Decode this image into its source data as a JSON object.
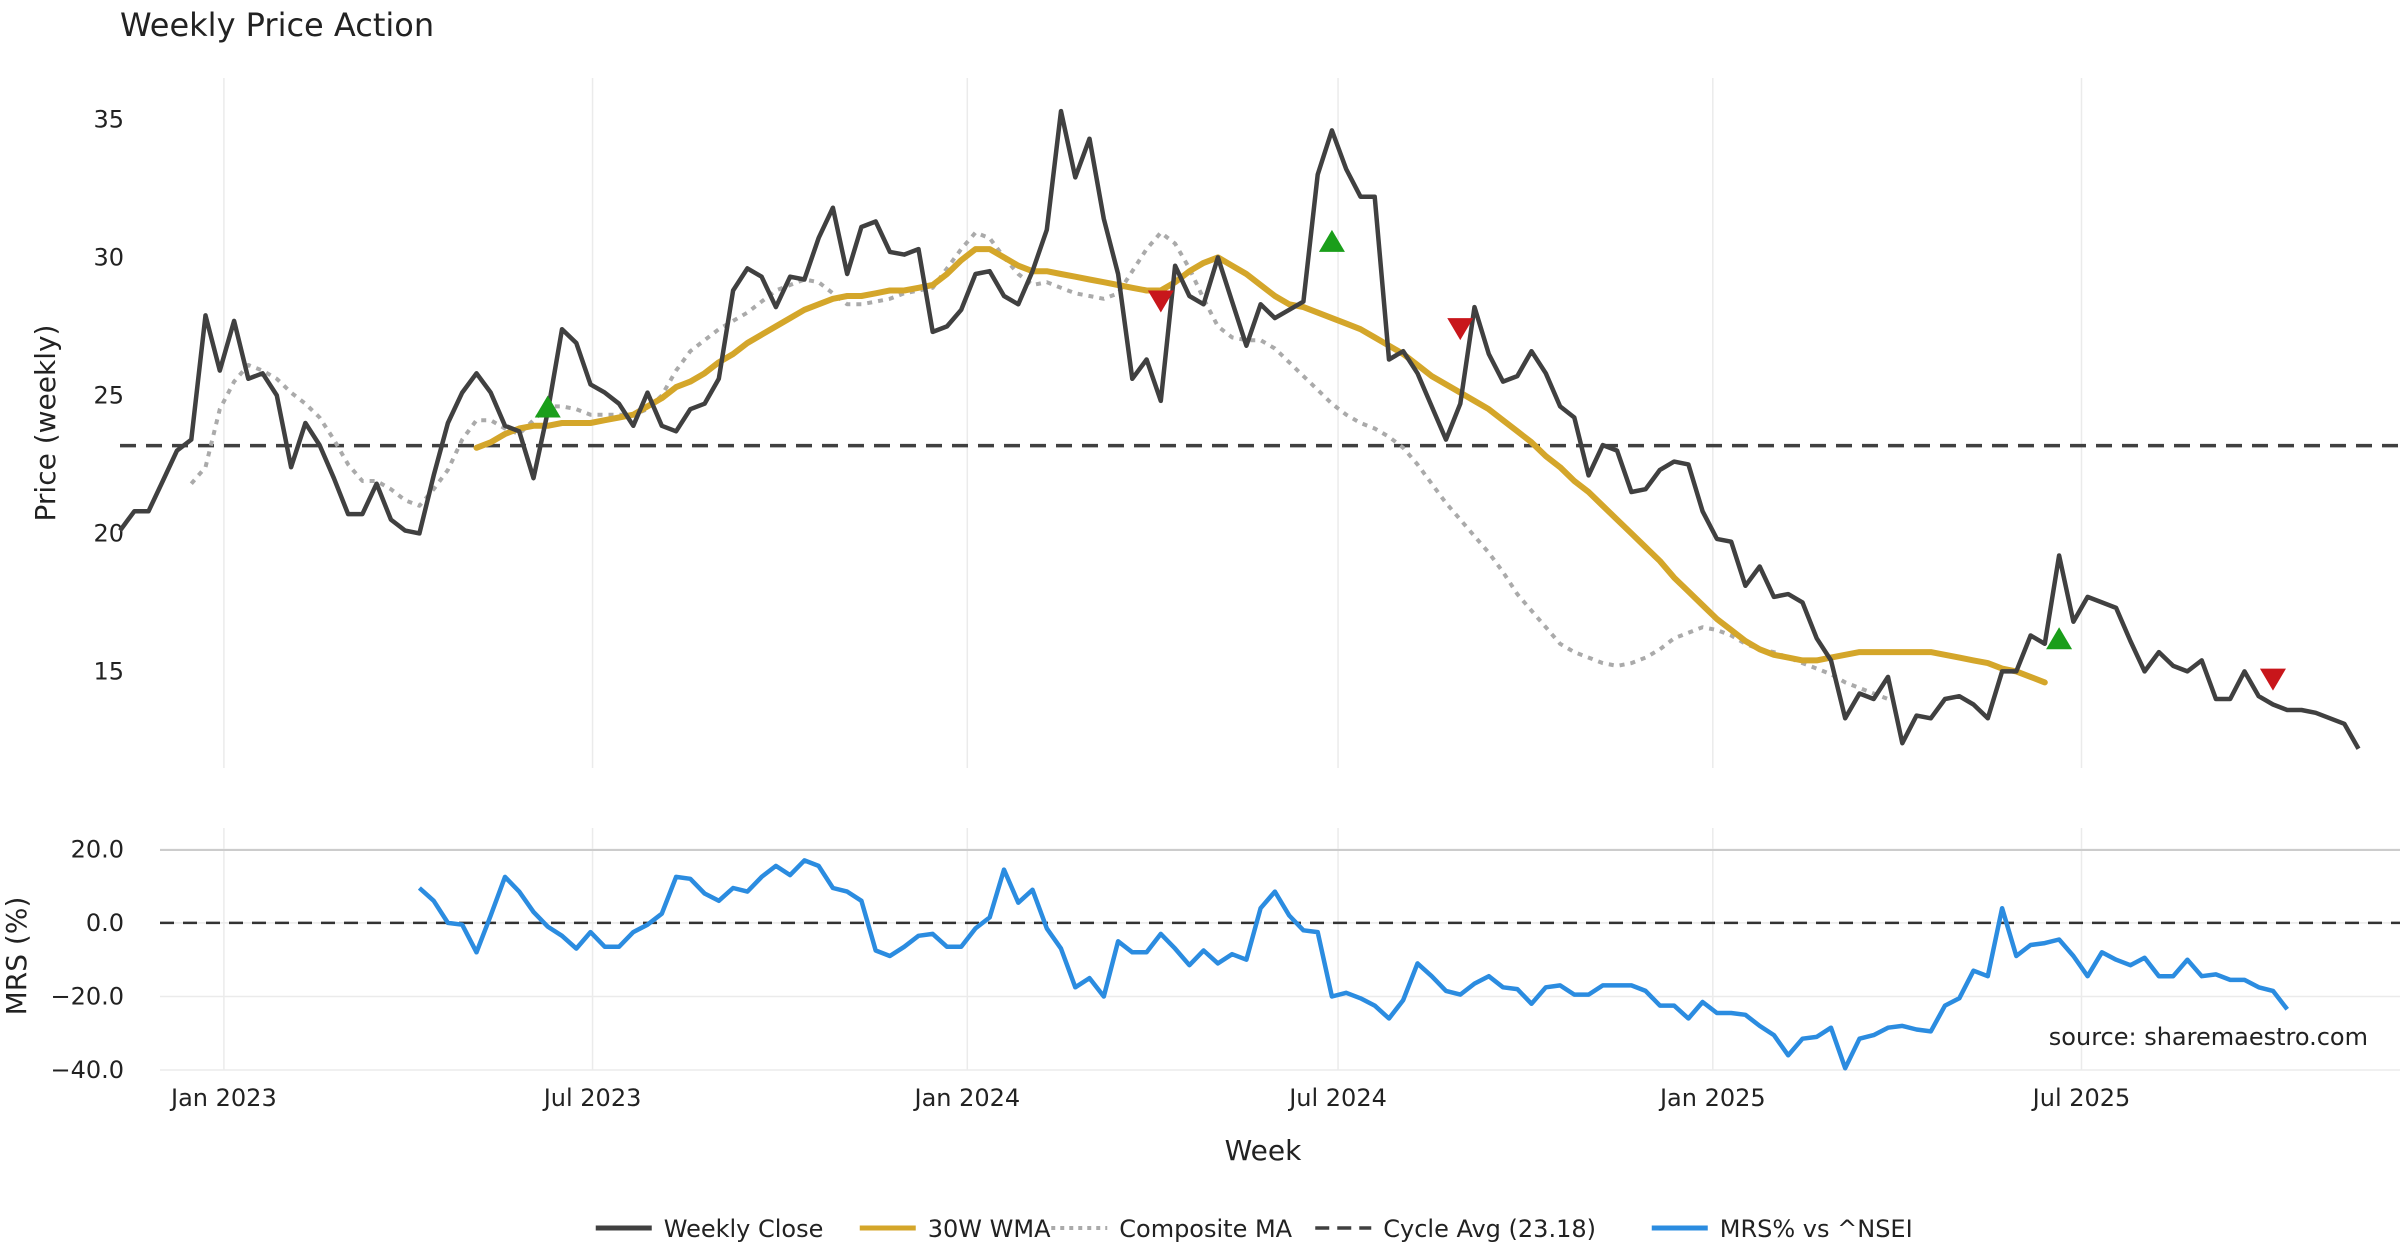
{
  "chart_data": [
    {
      "type": "line",
      "title": "Weekly Price Action",
      "xlabel": "",
      "ylabel": "Price (weekly)",
      "ylim": [
        11.5,
        36.5
      ],
      "yticks": [
        15,
        20,
        25,
        30,
        35
      ],
      "x_time_range": [
        "2022-11-11",
        "2025-10-31"
      ],
      "grid": true,
      "cycle_avg": 23.18,
      "series": [
        {
          "name": "Weekly Close",
          "color": "#404040",
          "start": "2022-11-11",
          "values": [
            20.1,
            20.8,
            20.8,
            21.9,
            23.0,
            23.4,
            27.9,
            25.9,
            27.7,
            25.6,
            25.8,
            25.0,
            22.4,
            24.0,
            23.2,
            22.0,
            20.7,
            20.7,
            21.8,
            20.5,
            20.1,
            20.0,
            22.1,
            24.0,
            25.1,
            25.8,
            25.1,
            23.9,
            23.7,
            22.0,
            24.4,
            27.4,
            26.9,
            25.4,
            25.1,
            24.7,
            23.9,
            25.1,
            23.9,
            23.7,
            24.5,
            24.7,
            25.6,
            28.8,
            29.6,
            29.3,
            28.2,
            29.3,
            29.2,
            30.7,
            31.8,
            29.4,
            31.1,
            31.3,
            30.2,
            30.1,
            30.3,
            27.3,
            27.5,
            28.1,
            29.4,
            29.5,
            28.6,
            28.3,
            29.5,
            31.0,
            35.3,
            32.9,
            34.3,
            31.4,
            29.4,
            25.6,
            26.3,
            24.8,
            29.7,
            28.6,
            28.3,
            30.0,
            28.4,
            26.8,
            28.3,
            27.8,
            28.1,
            28.4,
            33.0,
            34.6,
            33.2,
            32.2,
            32.2,
            26.3,
            26.6,
            25.8,
            24.6,
            23.4,
            24.7,
            28.2,
            26.5,
            25.5,
            25.7,
            26.6,
            25.8,
            24.6,
            24.2,
            22.1,
            23.2,
            23.0,
            21.5,
            21.6,
            22.3,
            22.6,
            22.5,
            20.8,
            19.8,
            19.7,
            18.1,
            18.8,
            17.7,
            17.8,
            17.5,
            16.2,
            15.4,
            13.3,
            14.2,
            14.0,
            14.8,
            12.4,
            13.4,
            13.3,
            14.0,
            14.1,
            13.8,
            13.3,
            15.0,
            15.0,
            16.3,
            16.0,
            19.2,
            16.8,
            17.7,
            17.5,
            17.3,
            16.1,
            15.0,
            15.7,
            15.2,
            15.0,
            15.4,
            14.0,
            14.0,
            15.0,
            14.1,
            13.8,
            13.6,
            13.6,
            13.5,
            13.3,
            13.1,
            12.2
          ]
        },
        {
          "name": "30W WMA",
          "color": "#D4A62A",
          "start": "2023-05-05",
          "values": [
            23.1,
            23.3,
            23.6,
            23.8,
            23.9,
            23.9,
            24.0,
            24.0,
            24.0,
            24.1,
            24.2,
            24.3,
            24.6,
            24.9,
            25.3,
            25.5,
            25.8,
            26.2,
            26.5,
            26.9,
            27.2,
            27.5,
            27.8,
            28.1,
            28.3,
            28.5,
            28.6,
            28.6,
            28.7,
            28.8,
            28.8,
            28.9,
            29.0,
            29.4,
            29.9,
            30.3,
            30.3,
            30.0,
            29.7,
            29.5,
            29.5,
            29.4,
            29.3,
            29.2,
            29.1,
            29.0,
            28.9,
            28.8,
            28.8,
            29.1,
            29.5,
            29.8,
            30.0,
            29.7,
            29.4,
            29.0,
            28.6,
            28.3,
            28.2,
            28.0,
            27.8,
            27.6,
            27.4,
            27.1,
            26.8,
            26.5,
            26.1,
            25.7,
            25.4,
            25.1,
            24.8,
            24.5,
            24.1,
            23.7,
            23.3,
            22.8,
            22.4,
            21.9,
            21.5,
            21.0,
            20.5,
            20.0,
            19.5,
            19.0,
            18.4,
            17.9,
            17.4,
            16.9,
            16.5,
            16.1,
            15.8,
            15.6,
            15.5,
            15.4,
            15.4,
            15.5,
            15.6,
            15.7,
            15.7,
            15.7,
            15.7,
            15.7,
            15.7,
            15.6,
            15.5,
            15.4,
            15.3,
            15.1,
            15.0,
            14.8,
            14.6
          ]
        },
        {
          "name": "Composite MA",
          "color": "#AAAAAA",
          "start": "2022-12-16",
          "values": [
            21.8,
            22.4,
            24.5,
            25.5,
            26.1,
            25.9,
            25.6,
            25.1,
            24.7,
            24.2,
            23.4,
            22.5,
            21.9,
            21.9,
            21.6,
            21.2,
            21.0,
            21.6,
            22.3,
            23.4,
            24.1,
            24.1,
            23.8,
            23.6,
            24.1,
            24.6,
            24.6,
            24.5,
            24.3,
            24.3,
            24.3,
            24.3,
            24.5,
            25.0,
            25.9,
            26.6,
            27.0,
            27.4,
            27.7,
            28.0,
            28.4,
            28.8,
            29.0,
            29.2,
            29.1,
            28.7,
            28.3,
            28.3,
            28.4,
            28.5,
            28.7,
            28.8,
            28.9,
            29.6,
            30.3,
            30.9,
            30.7,
            30.0,
            29.4,
            29.0,
            29.1,
            28.9,
            28.7,
            28.6,
            28.5,
            28.7,
            29.5,
            30.3,
            30.9,
            30.5,
            29.6,
            28.5,
            27.5,
            27.1,
            27.0,
            27.0,
            26.7,
            26.2,
            25.7,
            25.2,
            24.7,
            24.3,
            24.0,
            23.8,
            23.5,
            23.1,
            22.5,
            21.8,
            21.1,
            20.5,
            19.9,
            19.3,
            18.6,
            17.8,
            17.2,
            16.6,
            16.0,
            15.7,
            15.5,
            15.3,
            15.2,
            15.3,
            15.5,
            15.8,
            16.2,
            16.4,
            16.6,
            16.5,
            16.3,
            16.0,
            15.8,
            15.7,
            15.5,
            15.3,
            15.1,
            14.9,
            14.6,
            14.4,
            14.2,
            14.0
          ]
        },
        {
          "name": "Cycle Avg (23.18)",
          "color": "#404040",
          "value": 23.18
        }
      ],
      "annotations": [
        {
          "type": "buy",
          "date": "2023-06-09",
          "value": 24.6
        },
        {
          "type": "sell",
          "date": "2024-04-05",
          "value": 28.4
        },
        {
          "type": "buy",
          "date": "2024-06-28",
          "value": 30.6
        },
        {
          "type": "sell",
          "date": "2024-08-30",
          "value": 27.4
        },
        {
          "type": "buy",
          "date": "2025-06-20",
          "value": 16.2
        },
        {
          "type": "sell",
          "date": "2025-10-03",
          "value": 14.7
        }
      ]
    },
    {
      "type": "line",
      "title": "",
      "xlabel": "Week",
      "ylabel": "MRS (%)",
      "ylim": [
        -40,
        22
      ],
      "yticks": [
        -40.0,
        -20.0,
        0.0,
        20.0
      ],
      "ytick_labels": [
        "−40.0",
        "−20.0",
        "0.0",
        "20.0"
      ],
      "xticks": [
        {
          "date": "2023-01-01",
          "label": "Jan 2023"
        },
        {
          "date": "2023-07-01",
          "label": "Jul 2023"
        },
        {
          "date": "2024-01-01",
          "label": "Jan 2024"
        },
        {
          "date": "2024-07-01",
          "label": "Jul 2024"
        },
        {
          "date": "2025-01-01",
          "label": "Jan 2025"
        },
        {
          "date": "2025-07-01",
          "label": "Jul 2025"
        }
      ],
      "zero_line": 0,
      "series": [
        {
          "name": "MRS% vs ^NSEI",
          "color": "#2B8CE0",
          "start": "2023-04-07",
          "values": [
            9.5,
            6.0,
            0.0,
            -0.5,
            -8.0,
            2.0,
            12.5,
            8.5,
            3.0,
            -1.0,
            -3.5,
            -7.0,
            -2.5,
            -6.5,
            -6.5,
            -2.5,
            -0.5,
            2.5,
            12.5,
            12.0,
            8.0,
            6.0,
            9.5,
            8.5,
            12.5,
            15.5,
            13.0,
            17.0,
            15.5,
            9.5,
            8.5,
            6.0,
            -7.5,
            -9.0,
            -6.5,
            -3.5,
            -3.0,
            -6.5,
            -6.5,
            -1.5,
            1.5,
            14.5,
            5.5,
            9.0,
            -1.5,
            -7.0,
            -17.5,
            -15.0,
            -20.0,
            -5.0,
            -8.0,
            -8.0,
            -3.0,
            -7.0,
            -11.5,
            -7.5,
            -11.0,
            -8.5,
            -10.0,
            4.0,
            8.5,
            2.0,
            -2.0,
            -2.5,
            -20.0,
            -19.0,
            -20.5,
            -22.5,
            -26.0,
            -21.0,
            -11.0,
            -14.5,
            -18.5,
            -19.5,
            -16.5,
            -14.5,
            -17.5,
            -18.0,
            -22.0,
            -17.5,
            -17.0,
            -19.5,
            -19.5,
            -17.0,
            -17.0,
            -17.0,
            -18.5,
            -22.5,
            -22.5,
            -26.0,
            -21.5,
            -24.5,
            -24.5,
            -25.0,
            -28.0,
            -30.5,
            -36.0,
            -31.5,
            -31.0,
            -28.5,
            -39.5,
            -31.5,
            -30.5,
            -28.5,
            -28.0,
            -29.0,
            -29.5,
            -22.5,
            -20.5,
            -13.0,
            -14.5,
            4.0,
            -9.0,
            -6.0,
            -5.5,
            -4.5,
            -9.0,
            -14.5,
            -8.0,
            -10.0,
            -11.5,
            -9.5,
            -14.5,
            -14.5,
            -10.0,
            -14.5,
            -14.0,
            -15.5,
            -15.5,
            -17.5,
            -18.5,
            -23.5
          ]
        }
      ],
      "annotations": [
        {
          "text": "source: sharemaestro.com"
        }
      ]
    }
  ],
  "legend": [
    {
      "label": "Weekly Close",
      "style": "solid",
      "color": "#404040"
    },
    {
      "label": "30W WMA",
      "style": "solid",
      "color": "#D4A62A"
    },
    {
      "label": "Composite MA",
      "style": "dotted",
      "color": "#AAAAAA"
    },
    {
      "label": "Cycle Avg (23.18)",
      "style": "dashed",
      "color": "#404040"
    },
    {
      "label": "MRS% vs ^NSEI",
      "style": "solid",
      "color": "#2B8CE0"
    }
  ],
  "colors": {
    "buy": "#1A9E1A",
    "sell": "#C8161B",
    "grid": "#EBEBEB",
    "separator": "#CCCCCC",
    "source_text": "#888888"
  }
}
